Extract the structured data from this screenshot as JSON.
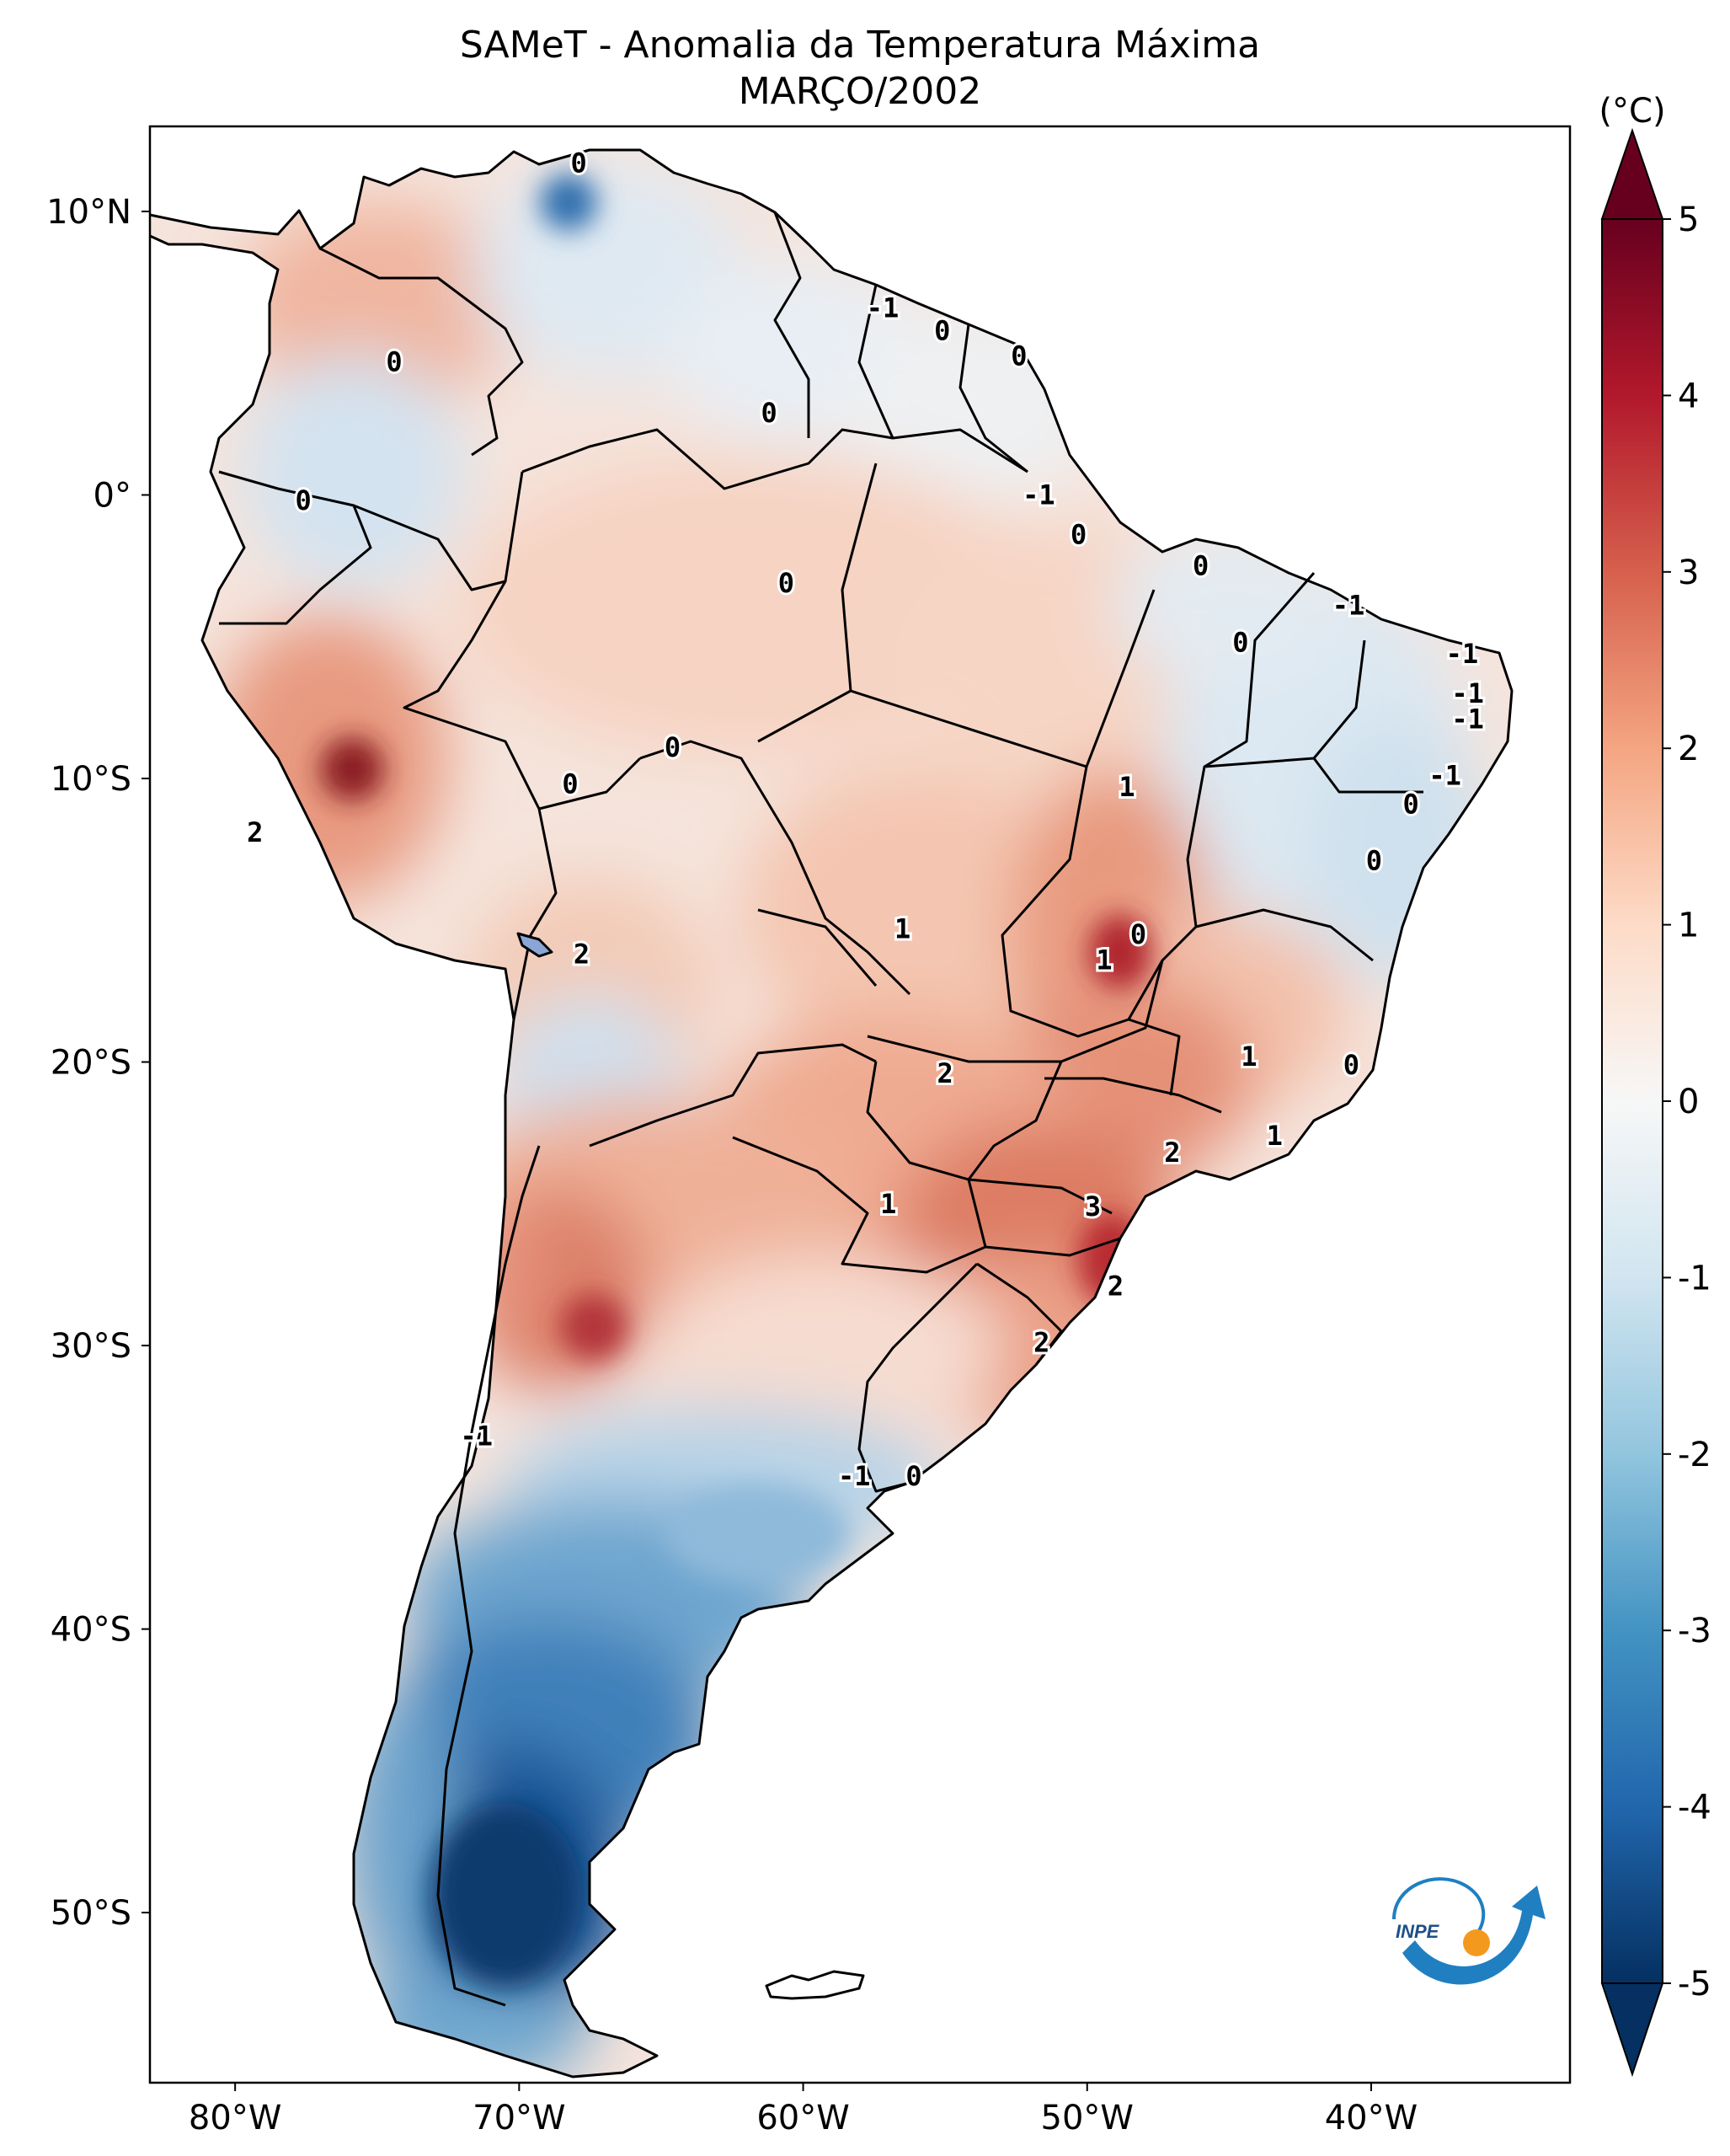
{
  "title_line1": "SAMeT - Anomalia da Temperatura Máxima",
  "title_line2": "MARÇO/2002",
  "colorbar": {
    "unit": "(°C)",
    "min": -5,
    "max": 5,
    "ticks": [
      "5",
      "4",
      "3",
      "2",
      "1",
      "0",
      "-1",
      "-2",
      "-3",
      "-4",
      "-5"
    ],
    "colors": [
      "#053061",
      "#2166ac",
      "#4393c3",
      "#92c5de",
      "#d1e5f0",
      "#f7f7f7",
      "#fddbc7",
      "#f4a582",
      "#d6604d",
      "#b2182b",
      "#67001f"
    ]
  },
  "axes": {
    "lon_ticks": [
      "80°W",
      "70°W",
      "60°W",
      "50°W",
      "40°W"
    ],
    "lat_ticks": [
      "10°N",
      "0°",
      "10°S",
      "20°S",
      "30°S",
      "40°S",
      "50°S"
    ]
  },
  "contour_labels": [
    {
      "text": "0",
      "lon": -67.9,
      "lat": 11.7
    },
    {
      "text": "0",
      "lon": -74.4,
      "lat": 4.7
    },
    {
      "text": "-1",
      "lon": -57.2,
      "lat": 6.6
    },
    {
      "text": "0",
      "lon": -55.1,
      "lat": 5.8
    },
    {
      "text": "0",
      "lon": -52.4,
      "lat": 4.9
    },
    {
      "text": "0",
      "lon": -61.2,
      "lat": 2.9
    },
    {
      "text": "-1",
      "lon": -51.7,
      "lat": 0.0
    },
    {
      "text": "0",
      "lon": -77.6,
      "lat": -0.2
    },
    {
      "text": "0",
      "lon": -50.3,
      "lat": -1.4
    },
    {
      "text": "0",
      "lon": -60.6,
      "lat": -3.1
    },
    {
      "text": "0",
      "lon": -46.0,
      "lat": -2.5
    },
    {
      "text": "-1",
      "lon": -40.8,
      "lat": -3.9
    },
    {
      "text": "0",
      "lon": -44.6,
      "lat": -5.2
    },
    {
      "text": "-1",
      "lon": -36.8,
      "lat": -5.6
    },
    {
      "text": "-1",
      "lon": -36.6,
      "lat": -7.0
    },
    {
      "text": "-1",
      "lon": -36.6,
      "lat": -7.9
    },
    {
      "text": "0",
      "lon": -64.6,
      "lat": -8.9
    },
    {
      "text": "0",
      "lon": -68.2,
      "lat": -10.2
    },
    {
      "text": "-1",
      "lon": -37.4,
      "lat": -9.9
    },
    {
      "text": "0",
      "lon": -38.6,
      "lat": -10.9
    },
    {
      "text": "1",
      "lon": -48.6,
      "lat": -10.3
    },
    {
      "text": "2",
      "lon": -79.3,
      "lat": -11.9
    },
    {
      "text": "0",
      "lon": -39.9,
      "lat": -12.9
    },
    {
      "text": "1",
      "lon": -56.5,
      "lat": -15.3
    },
    {
      "text": "0",
      "lon": -48.2,
      "lat": -15.5
    },
    {
      "text": "1",
      "lon": -49.4,
      "lat": -16.4
    },
    {
      "text": "2",
      "lon": -67.8,
      "lat": -16.2
    },
    {
      "text": "2",
      "lon": -55.0,
      "lat": -20.4
    },
    {
      "text": "1",
      "lon": -44.3,
      "lat": -19.8
    },
    {
      "text": "0",
      "lon": -40.7,
      "lat": -20.1
    },
    {
      "text": "1",
      "lon": -43.4,
      "lat": -22.6
    },
    {
      "text": "2",
      "lon": -47.0,
      "lat": -23.2
    },
    {
      "text": "1",
      "lon": -57.0,
      "lat": -25.0
    },
    {
      "text": "3",
      "lon": -49.8,
      "lat": -25.1
    },
    {
      "text": "2",
      "lon": -49.0,
      "lat": -27.9
    },
    {
      "text": "2",
      "lon": -51.6,
      "lat": -29.9
    },
    {
      "text": "-1",
      "lon": -71.5,
      "lat": -33.2
    },
    {
      "text": "-1",
      "lon": -58.2,
      "lat": -34.6
    },
    {
      "text": "0",
      "lon": -56.1,
      "lat": -34.6
    }
  ],
  "logo": {
    "text": "INPE"
  }
}
